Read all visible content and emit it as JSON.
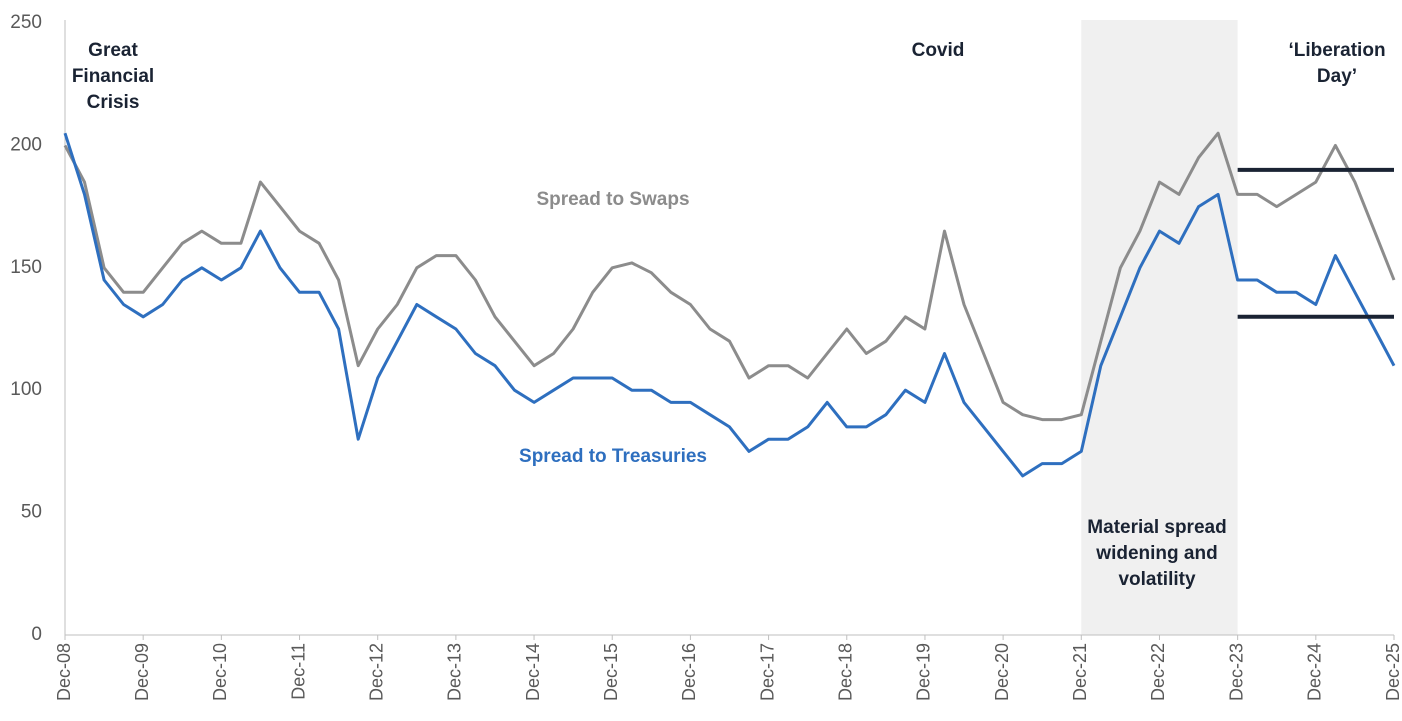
{
  "chart_data": {
    "type": "line",
    "categories": [
      "Dec-08",
      null,
      null,
      null,
      "Dec-09",
      null,
      null,
      null,
      "Dec-10",
      null,
      null,
      null,
      "Dec-11",
      null,
      null,
      null,
      "Dec-12",
      null,
      null,
      null,
      "Dec-13",
      null,
      null,
      null,
      "Dec-14",
      null,
      null,
      null,
      "Dec-15",
      null,
      null,
      null,
      "Dec-16",
      null,
      null,
      null,
      "Dec-17",
      null,
      null,
      null,
      "Dec-18",
      null,
      null,
      null,
      "Dec-19",
      null,
      null,
      null,
      "Dec-20",
      null,
      null,
      null,
      "Dec-21",
      null,
      null,
      null,
      "Dec-22",
      null,
      null,
      null,
      "Dec-23",
      null,
      null,
      null,
      "Dec-24",
      null,
      null,
      null,
      "Dec-25"
    ],
    "series": [
      {
        "name": "Spread to Swaps",
        "color": "#8c8c8c",
        "values": [
          200,
          185,
          150,
          140,
          140,
          150,
          160,
          165,
          160,
          160,
          185,
          175,
          165,
          160,
          145,
          110,
          125,
          135,
          150,
          155,
          155,
          145,
          130,
          120,
          110,
          115,
          125,
          140,
          150,
          152,
          148,
          140,
          135,
          125,
          120,
          105,
          110,
          110,
          105,
          115,
          125,
          115,
          120,
          130,
          125,
          165,
          135,
          115,
          95,
          90,
          88,
          88,
          90,
          120,
          150,
          165,
          185,
          180,
          195,
          205,
          180,
          180,
          175,
          180,
          185,
          200,
          185,
          165,
          145
        ]
      },
      {
        "name": "Spread to Treasuries",
        "color": "#2e6fbf",
        "values": [
          205,
          180,
          145,
          135,
          130,
          135,
          145,
          150,
          145,
          150,
          165,
          150,
          140,
          140,
          125,
          80,
          105,
          120,
          135,
          130,
          125,
          115,
          110,
          100,
          95,
          100,
          105,
          105,
          105,
          100,
          100,
          95,
          95,
          90,
          85,
          75,
          80,
          80,
          85,
          95,
          85,
          85,
          90,
          100,
          95,
          115,
          95,
          85,
          75,
          65,
          70,
          70,
          75,
          110,
          130,
          150,
          165,
          160,
          175,
          180,
          145,
          145,
          140,
          140,
          135,
          155,
          140,
          125,
          110
        ]
      }
    ],
    "ylim": [
      0,
      250
    ],
    "yticks": [
      0,
      50,
      100,
      150,
      200,
      250
    ],
    "grid": false,
    "shaded_region": {
      "from": "Dec-21",
      "to": "Dec-23",
      "color": "#f0f0f0"
    },
    "reference_lines": [
      {
        "value": 190,
        "from": "Dec-23",
        "to": "Dec-25",
        "color": "#1a2333"
      },
      {
        "value": 130,
        "from": "Dec-23",
        "to": "Dec-25",
        "color": "#1a2333"
      }
    ],
    "annotations": [
      "Great Financial Crisis",
      "Covid",
      "‘Liberation Day’",
      "Material spread widening and volatility"
    ]
  }
}
